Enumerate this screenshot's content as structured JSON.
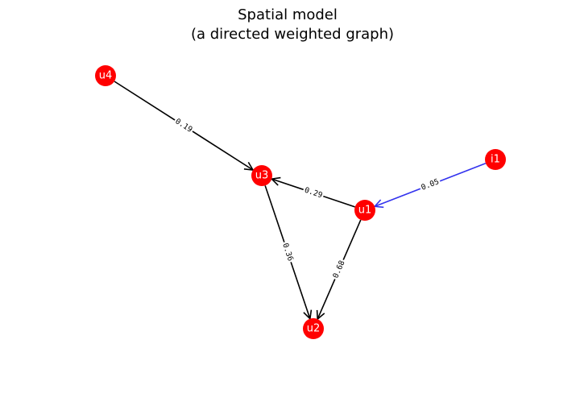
{
  "title": {
    "line1": "Spatial model",
    "line2": "(a directed weighted graph)"
  },
  "colors": {
    "node_fill": "#ff0000",
    "node_text": "#ffffff",
    "edge_default": "#000000",
    "edge_highlight": "#3333ee",
    "background": "#ffffff"
  },
  "nodes": [
    {
      "id": "u4",
      "label": "u4"
    },
    {
      "id": "u3",
      "label": "u3"
    },
    {
      "id": "u1",
      "label": "u1"
    },
    {
      "id": "u2",
      "label": "u2"
    },
    {
      "id": "i1",
      "label": "i1"
    }
  ],
  "edges": [
    {
      "from": "u4",
      "to": "u3",
      "weight": "0.19",
      "style": "default"
    },
    {
      "from": "u1",
      "to": "u3",
      "weight": "0.29",
      "style": "default"
    },
    {
      "from": "i1",
      "to": "u1",
      "weight": "0.05",
      "style": "highlight"
    },
    {
      "from": "u3",
      "to": "u2",
      "weight": "0.36",
      "style": "default"
    },
    {
      "from": "u1",
      "to": "u2",
      "weight": "0.68",
      "style": "default"
    }
  ]
}
